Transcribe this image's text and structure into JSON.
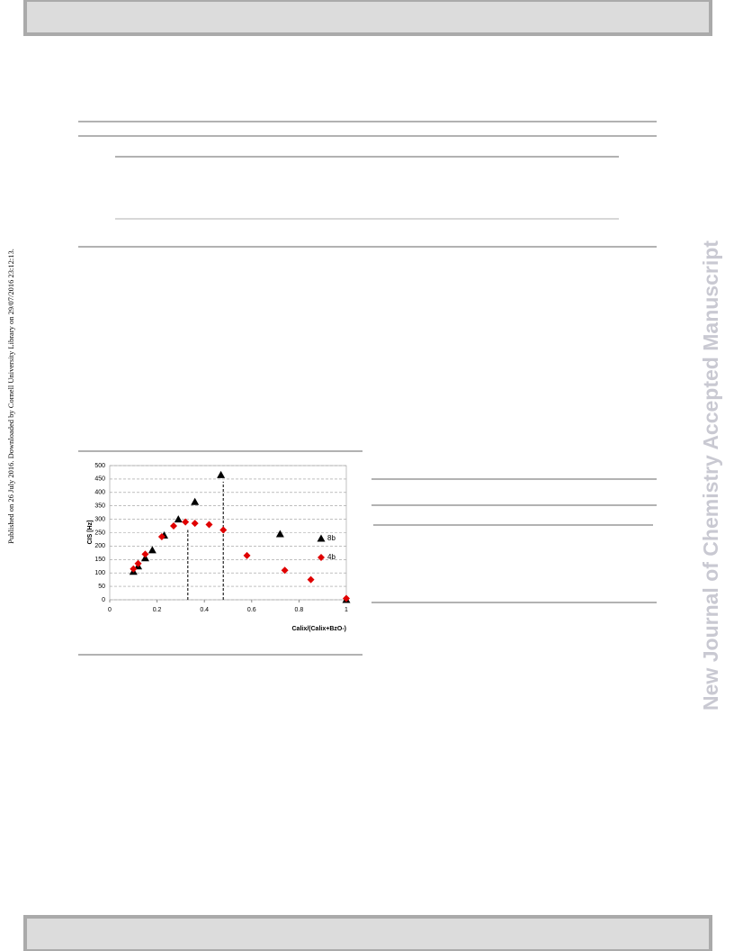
{
  "side_note": "Published on 26 July 2016. Downloaded by Cornell University Library on 29/07/2016 23:12:13.",
  "watermark": "New Journal of Chemistry Accepted Manuscript",
  "chart_data": {
    "type": "scatter",
    "y_label": "CIS [Hz]",
    "x_label": "Calix/(Calix+BzO-)",
    "xlim": [
      0,
      1
    ],
    "xticks": [
      0,
      0.2,
      0.4,
      0.6,
      0.8,
      1
    ],
    "ylim": [
      0,
      500
    ],
    "yticks": [
      0,
      50,
      100,
      150,
      200,
      250,
      300,
      350,
      400,
      450,
      500
    ],
    "grid": true,
    "legend": "right",
    "series": [
      {
        "name": "8b",
        "color": "#000000",
        "marker": "triangle",
        "x": [
          0.1,
          0.12,
          0.15,
          0.18,
          0.23,
          0.29,
          0.36,
          0.47,
          0.72,
          1.0
        ],
        "values": [
          105,
          125,
          155,
          185,
          240,
          300,
          365,
          465,
          245,
          0
        ]
      },
      {
        "name": "4b",
        "color": "#e00000",
        "marker": "diamond",
        "x": [
          0.1,
          0.12,
          0.15,
          0.22,
          0.27,
          0.32,
          0.36,
          0.42,
          0.48,
          0.58,
          0.74,
          0.85,
          1.0
        ],
        "values": [
          115,
          135,
          170,
          235,
          275,
          290,
          285,
          280,
          260,
          165,
          110,
          75,
          5
        ]
      }
    ],
    "vlines": [
      {
        "x": 0.33,
        "y": 260
      },
      {
        "x": 0.48,
        "y": 440
      }
    ]
  }
}
